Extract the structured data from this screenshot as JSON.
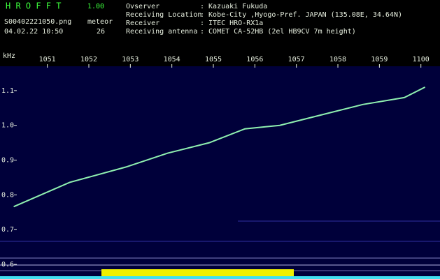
{
  "header": {
    "program": "H R O F F T",
    "version": "1.00",
    "filename": "S00402221050.png",
    "counter_label": "meteor",
    "counter": 26,
    "datetime": "04.02.22 10:50",
    "info": [
      {
        "label": "Ovserver",
        "value": ": Kazuaki Fukuda"
      },
      {
        "label": "Receiving Location",
        "value": ": Kobe-City ,Hyogo-Pref. JAPAN (135.08E, 34.64N)"
      },
      {
        "label": "Receiver",
        "value": ": ITEC HRO-RX1a"
      },
      {
        "label": "Receiving antenna",
        "value": ": COMET CA-52HB (2el HB9CV 7m height)"
      }
    ]
  },
  "chart_data": {
    "type": "line",
    "y_label": "kHz",
    "x": [
      0.19,
      1.54,
      2.89,
      3.9,
      4.9,
      5.76,
      6.6,
      7.6,
      8.6,
      9.6,
      10.1
    ],
    "series": [
      {
        "color": "#8ff0b0",
        "values": [
          0.766,
          0.836,
          0.88,
          0.92,
          0.95,
          0.99,
          1.0,
          1.03,
          1.06,
          1.08,
          1.11
        ]
      }
    ],
    "xlim": [
      -0.14,
      10.46
    ],
    "xticks": [
      {
        "value": 1,
        "label": "1051"
      },
      {
        "value": 2,
        "label": "1052"
      },
      {
        "value": 3,
        "label": "1053"
      },
      {
        "value": 4,
        "label": "1054"
      },
      {
        "value": 5,
        "label": "1055"
      },
      {
        "value": 6,
        "label": "1056"
      },
      {
        "value": 7,
        "label": "1057"
      },
      {
        "value": 8,
        "label": "1058"
      },
      {
        "value": 9,
        "label": "1059"
      },
      {
        "value": 10,
        "label": "1100"
      }
    ],
    "ylim": [
      0.558,
      1.17
    ],
    "yticks": [
      {
        "value": 1.1,
        "label": "1.1"
      },
      {
        "value": 1,
        "label": "1.0"
      },
      0.9,
      0.8,
      0.7,
      0.6
    ]
  }
}
